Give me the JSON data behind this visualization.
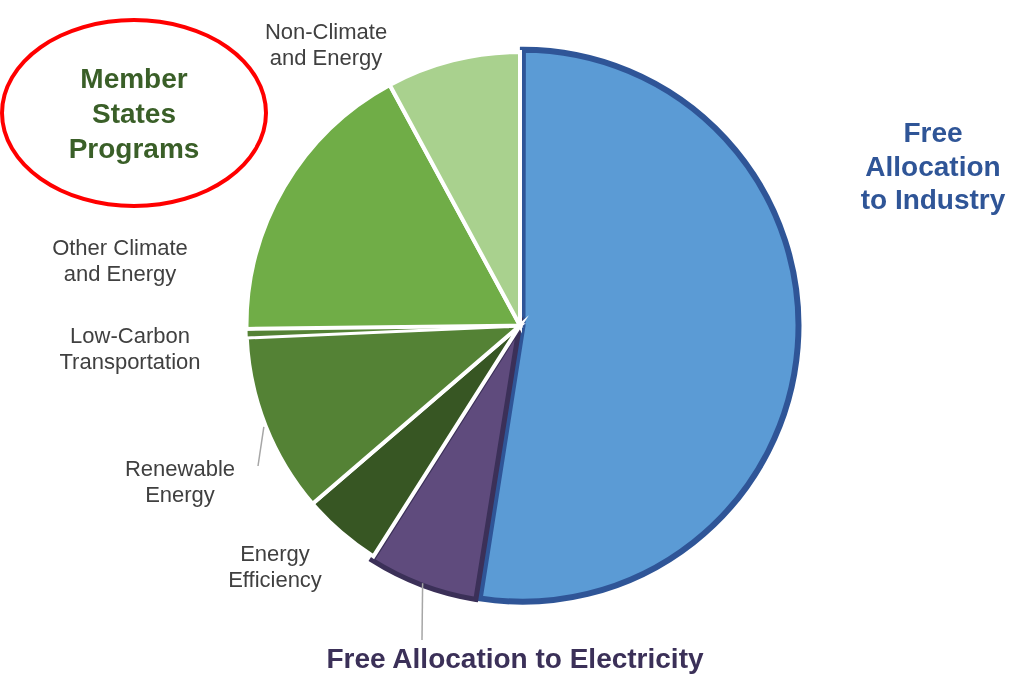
{
  "chart_data": {
    "type": "pie",
    "legend": false,
    "categories": [
      "Free Allocation to Industry",
      "Free Allocation to Electricity",
      "Energy Efficiency",
      "Renewable Energy",
      "Low-Carbon Transportation",
      "Other Climate and Energy",
      "Non-Climate and Energy"
    ],
    "values": [
      52.5,
      6.5,
      4.7,
      10.6,
      0.5,
      17.3,
      7.9
    ],
    "colors": [
      "#5b9bd5",
      "#5f4b7d",
      "#375623",
      "#548235",
      "#548235",
      "#70ad47",
      "#a9d18e"
    ],
    "annotations": [
      "Member States Programs"
    ]
  }
}
